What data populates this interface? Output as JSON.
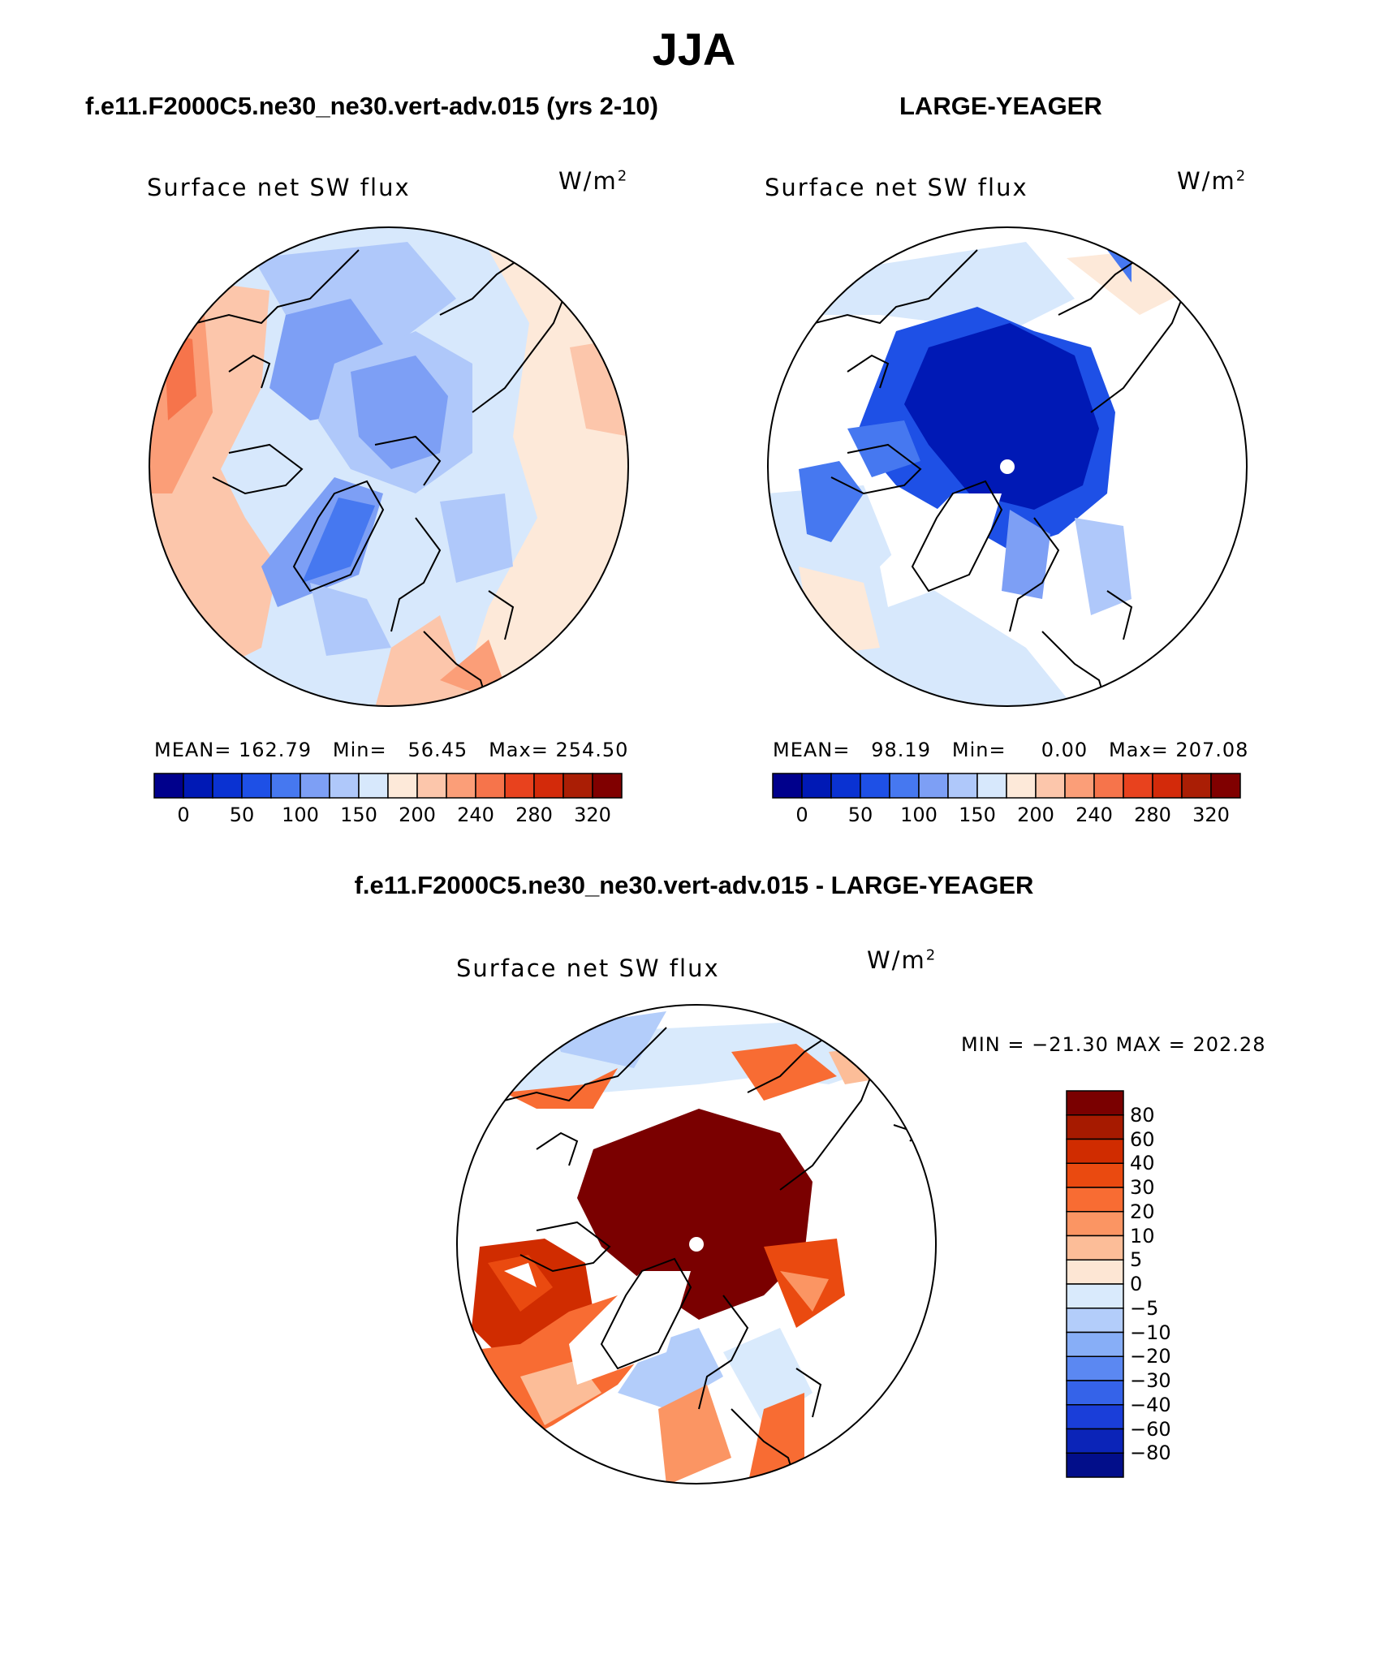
{
  "title": "JJA",
  "panels": [
    {
      "title": "f.e11.F2000C5.ne30_ne30.vert-adv.015 (yrs 2-10)",
      "variable": "Surface net SW flux",
      "unit_base": "W/m",
      "unit_exp": "2",
      "mean_label": "MEAN=",
      "mean": "162.79",
      "min_label": "Min=",
      "min": "56.45",
      "max_label": "Max=",
      "max": "254.50"
    },
    {
      "title": "LARGE-YEAGER",
      "variable": "Surface net SW flux",
      "unit_base": "W/m",
      "unit_exp": "2",
      "mean_label": "MEAN=",
      "mean": "98.19",
      "min_label": "Min=",
      "min": "0.00",
      "max_label": "Max=",
      "max": "207.08"
    },
    {
      "title": "f.e11.F2000C5.ne30_ne30.vert-adv.015 - LARGE-YEAGER",
      "variable": "Surface net SW flux",
      "unit_base": "W/m",
      "unit_exp": "2",
      "minmax": "MIN = −21.30 MAX = 202.28"
    }
  ],
  "abs_colorbar": {
    "colors": [
      "#00008c",
      "#0019b5",
      "#0a32d2",
      "#1e50e6",
      "#4678f0",
      "#7d9ff5",
      "#afc8fa",
      "#d7e8fc",
      "#fde9d9",
      "#fcc6ab",
      "#fb9e78",
      "#f6744b",
      "#e8421e",
      "#d32a0a",
      "#aa1e05",
      "#800000"
    ],
    "ticks": [
      "0",
      "50",
      "100",
      "150",
      "200",
      "240",
      "280",
      "320"
    ]
  },
  "diff_colorbar": {
    "colors": [
      "#7a0000",
      "#a61a00",
      "#d02c00",
      "#ea4a10",
      "#f86c33",
      "#fb9563",
      "#fcbd98",
      "#fde6d4",
      "#d9eafc",
      "#b3cdfa",
      "#87aef7",
      "#5b88f2",
      "#3563e9",
      "#1a3ed9",
      "#0b24b8",
      "#020e8a"
    ],
    "ticks": [
      "80",
      "60",
      "40",
      "30",
      "20",
      "10",
      "5",
      "0",
      "−5",
      "−10",
      "−20",
      "−30",
      "−40",
      "−60",
      "−80"
    ]
  }
}
